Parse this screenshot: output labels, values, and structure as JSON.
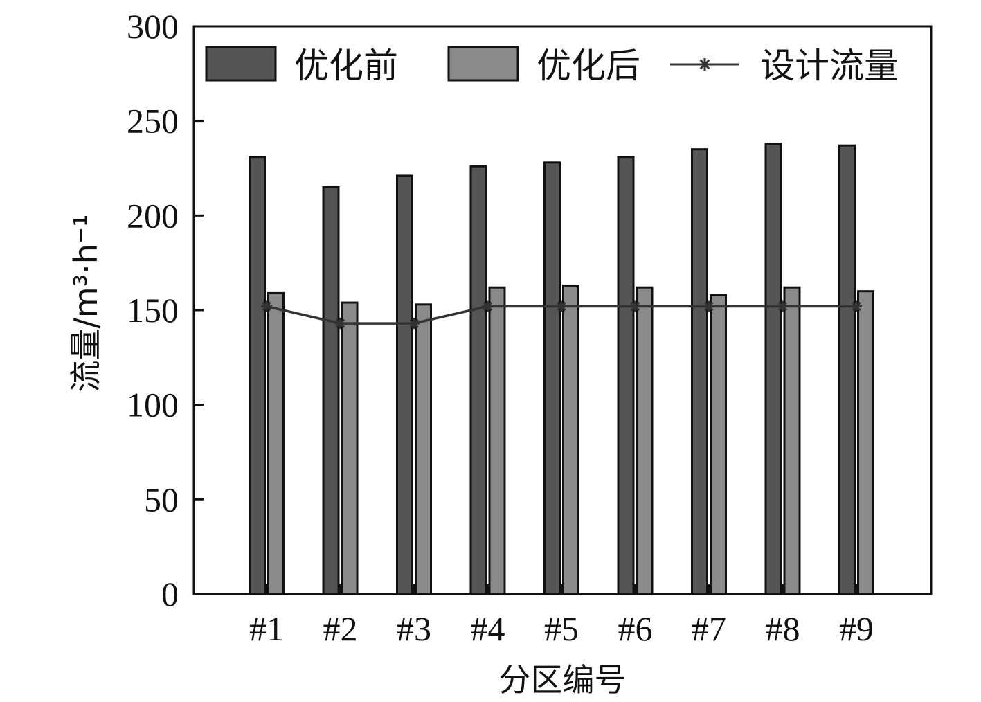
{
  "chart_data": {
    "type": "bar",
    "categories": [
      "#1",
      "#2",
      "#3",
      "#4",
      "#5",
      "#6",
      "#7",
      "#8",
      "#9"
    ],
    "series": [
      {
        "name": "优化前",
        "kind": "bar",
        "color": "#555555",
        "values": [
          231,
          215,
          221,
          226,
          228,
          231,
          235,
          238,
          237
        ]
      },
      {
        "name": "优化后",
        "kind": "bar",
        "color": "#8a8a8a",
        "values": [
          159,
          154,
          153,
          162,
          163,
          162,
          158,
          162,
          160
        ]
      },
      {
        "name": "设计流量",
        "kind": "line",
        "color": "#333333",
        "values": [
          152,
          143,
          143,
          152,
          152,
          152,
          152,
          152,
          152
        ]
      }
    ],
    "title": "",
    "xlabel": "分区编号",
    "ylabel": "流量/m³·h⁻¹",
    "ylim": [
      0,
      300
    ],
    "yticks": [
      "0",
      "50",
      "100",
      "150",
      "200",
      "250",
      "300"
    ],
    "grid": false,
    "legend_position": "top"
  }
}
